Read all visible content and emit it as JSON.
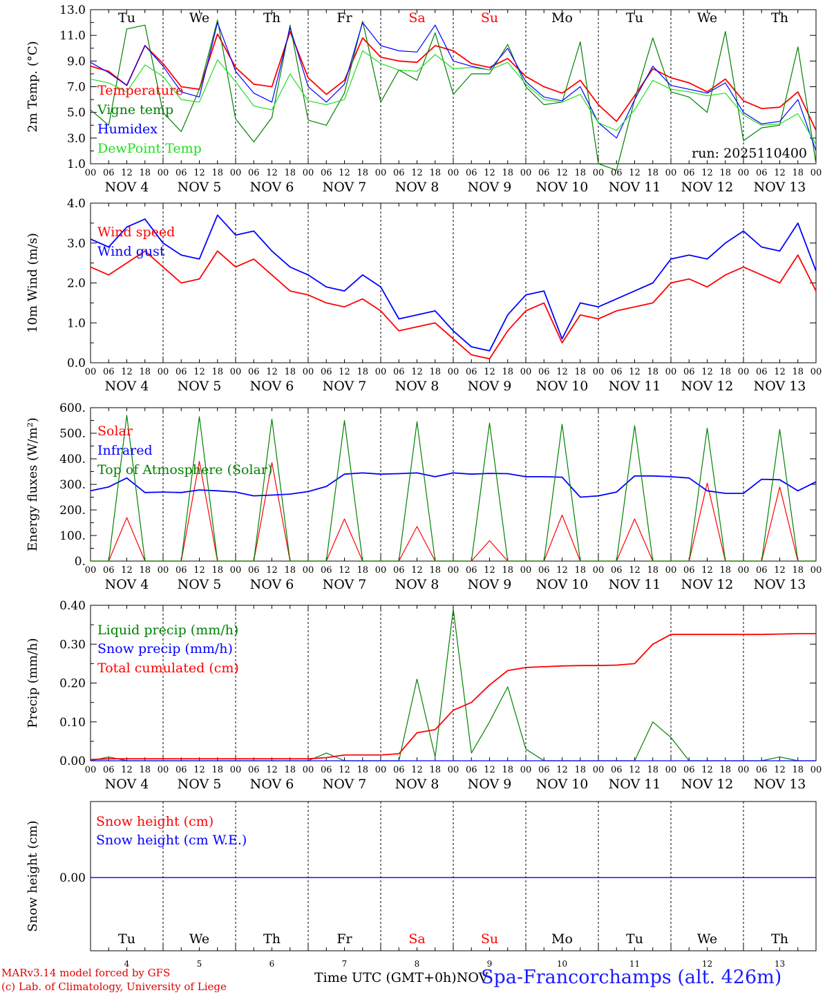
{
  "figure": {
    "days": [
      "Tu",
      "We",
      "Th",
      "Fr",
      "Sa",
      "Su",
      "Mo",
      "Tu",
      "We",
      "Th"
    ],
    "day_numbers": [
      "4",
      "5",
      "6",
      "7",
      "8",
      "9",
      "10",
      "11",
      "12",
      "13"
    ],
    "date_labels": [
      "NOV  4",
      "NOV  5",
      "NOV  6",
      "NOV  7",
      "NOV  8",
      "NOV  9",
      "NOV 10",
      "NOV 11",
      "NOV 12",
      "NOV 13"
    ],
    "hour_ticks": [
      "00",
      "06",
      "12",
      "18"
    ],
    "hour_end": "00",
    "weekend_days": [
      4,
      5
    ],
    "colors": {
      "red": "#ff0000",
      "green": "#008000",
      "blue": "#0000ff",
      "lightgreen": "#22dd22",
      "axis": "#000000"
    },
    "run_label": "run: 2025110400",
    "x_axis_label": "Time UTC (GMT+0h)",
    "x_axis_month": "NOV",
    "station": "Spa-Francorchamps (alt. 426m)",
    "credit_line1": "MARv3.14 model forced by GFS",
    "credit_line2": "(c) Lab. of Climatology, University of Liege"
  },
  "chart_data": [
    {
      "type": "line",
      "title": "2m Temp. (°C)",
      "ylabel": "2m Temp. (°C)",
      "ylim": [
        1.0,
        13.0
      ],
      "yticks": [
        "1.0",
        "3.0",
        "5.0",
        "7.0",
        "9.0",
        "11.0",
        "13.0"
      ],
      "ytick_values": [
        1,
        3,
        5,
        7,
        9,
        11,
        13
      ],
      "x": "hours since NOV 4 00 UTC (0-240, every 6 h)",
      "legend": [
        "Temperature",
        "Vigne temp",
        "Humidex",
        "DewPoint Temp"
      ],
      "series": [
        {
          "name": "Temperature",
          "color": "#ff0000",
          "values": [
            8.6,
            8.2,
            7.1,
            10.2,
            8.8,
            7.0,
            6.8,
            11.1,
            8.5,
            7.2,
            7.0,
            11.3,
            7.7,
            6.4,
            7.5,
            10.8,
            9.3,
            9.0,
            8.9,
            10.2,
            9.8,
            8.8,
            8.5,
            9.2,
            7.8,
            7.0,
            6.5,
            7.5,
            5.6,
            4.3,
            6.3,
            8.4,
            7.7,
            7.3,
            6.6,
            7.6,
            5.9,
            5.3,
            5.4,
            6.6,
            3.6
          ]
        },
        {
          "name": "Vigne temp",
          "color": "#008000",
          "values": [
            5.2,
            4.0,
            11.5,
            11.8,
            5.0,
            3.5,
            6.8,
            12.2,
            4.5,
            2.7,
            4.6,
            11.8,
            4.4,
            4.0,
            6.5,
            12.1,
            5.8,
            8.3,
            7.5,
            11.2,
            6.4,
            8.0,
            8.0,
            10.3,
            7.0,
            5.6,
            5.8,
            10.5,
            1.0,
            0.5,
            6.0,
            10.8,
            6.6,
            6.2,
            5.0,
            11.3,
            2.8,
            3.8,
            4.0,
            10.1,
            1.0
          ]
        },
        {
          "name": "Humidex",
          "color": "#0000ff",
          "values": [
            8.9,
            8.1,
            7.1,
            10.2,
            8.6,
            6.6,
            6.2,
            12.0,
            8.2,
            6.5,
            5.8,
            11.6,
            7.0,
            5.8,
            7.2,
            12.0,
            10.2,
            9.8,
            9.7,
            11.8,
            9.0,
            8.6,
            8.3,
            10.0,
            7.4,
            6.2,
            5.9,
            7.0,
            4.2,
            3.0,
            6.0,
            8.6,
            7.1,
            6.8,
            6.5,
            7.3,
            5.0,
            4.1,
            4.3,
            6.0,
            2.0
          ]
        },
        {
          "name": "DewPoint Temp",
          "color": "#22dd22",
          "values": [
            7.6,
            7.3,
            6.6,
            8.7,
            7.8,
            6.0,
            5.8,
            9.1,
            7.4,
            5.5,
            5.2,
            8.0,
            5.9,
            5.6,
            6.0,
            9.8,
            8.8,
            8.3,
            8.2,
            9.5,
            8.4,
            8.5,
            8.3,
            8.9,
            7.2,
            6.0,
            5.8,
            6.4,
            4.2,
            3.6,
            5.2,
            7.5,
            6.8,
            6.6,
            6.3,
            6.5,
            4.8,
            4.0,
            4.1,
            4.9,
            2.5
          ]
        }
      ]
    },
    {
      "type": "line",
      "title": "10m Wind (m/s)",
      "ylabel": "10m Wind (m/s)",
      "ylim": [
        0.0,
        4.0
      ],
      "yticks": [
        "0.0",
        "1.0",
        "2.0",
        "3.0",
        "4.0"
      ],
      "ytick_values": [
        0,
        1,
        2,
        3,
        4
      ],
      "x": "hours since NOV 4 00 UTC (0-240, every 6 h)",
      "legend": [
        "Wind speed",
        "Wind gust"
      ],
      "series": [
        {
          "name": "Wind speed",
          "color": "#ff0000",
          "values": [
            2.4,
            2.2,
            2.5,
            2.8,
            2.4,
            2.0,
            2.1,
            2.8,
            2.4,
            2.6,
            2.2,
            1.8,
            1.7,
            1.5,
            1.4,
            1.6,
            1.3,
            0.8,
            0.9,
            1.0,
            0.6,
            0.2,
            0.1,
            0.8,
            1.3,
            1.5,
            0.5,
            1.2,
            1.1,
            1.3,
            1.4,
            1.5,
            2.0,
            2.1,
            1.9,
            2.2,
            2.4,
            2.2,
            2.0,
            2.7,
            1.8
          ]
        },
        {
          "name": "Wind gust",
          "color": "#0000ff",
          "values": [
            3.1,
            2.9,
            3.4,
            3.6,
            3.0,
            2.7,
            2.6,
            3.7,
            3.2,
            3.3,
            2.8,
            2.4,
            2.2,
            1.9,
            1.8,
            2.2,
            1.9,
            1.1,
            1.2,
            1.3,
            0.8,
            0.4,
            0.3,
            1.2,
            1.7,
            1.8,
            0.6,
            1.5,
            1.4,
            1.6,
            1.8,
            2.0,
            2.6,
            2.7,
            2.6,
            3.0,
            3.3,
            2.9,
            2.8,
            3.5,
            2.3
          ]
        }
      ]
    },
    {
      "type": "line",
      "title": "Energy fluxes (W/m²)",
      "ylabel": "Energy fluxes (W/m²)",
      "ylim": [
        0,
        600
      ],
      "yticks": [
        "0.",
        "100.",
        "200.",
        "300.",
        "400.",
        "500.",
        "600."
      ],
      "ytick_values": [
        0,
        100,
        200,
        300,
        400,
        500,
        600
      ],
      "x": "hours since NOV 4 00 UTC (0-240, every 6 h)",
      "legend": [
        "Solar",
        "Infrared",
        "Top of Atmosphere (Solar)"
      ],
      "series": [
        {
          "name": "Solar",
          "color": "#ff0000",
          "values": [
            0,
            0,
            170,
            0,
            0,
            0,
            390,
            0,
            0,
            0,
            385,
            0,
            0,
            0,
            165,
            0,
            0,
            0,
            135,
            0,
            0,
            0,
            80,
            0,
            0,
            0,
            180,
            0,
            0,
            0,
            165,
            0,
            0,
            0,
            305,
            0,
            0,
            0,
            290,
            0,
            0
          ]
        },
        {
          "name": "Infrared",
          "color": "#0000ff",
          "values": [
            275,
            290,
            325,
            268,
            270,
            268,
            278,
            275,
            270,
            255,
            258,
            262,
            272,
            292,
            340,
            345,
            340,
            342,
            345,
            330,
            345,
            340,
            343,
            342,
            330,
            330,
            328,
            250,
            255,
            270,
            333,
            333,
            330,
            325,
            275,
            265,
            265,
            320,
            318,
            275,
            310
          ]
        },
        {
          "name": "Top of Atmosphere (Solar)",
          "color": "#008000",
          "values": [
            0,
            0,
            570,
            0,
            0,
            0,
            565,
            0,
            0,
            0,
            555,
            0,
            0,
            0,
            550,
            0,
            0,
            0,
            545,
            0,
            0,
            0,
            540,
            0,
            0,
            0,
            535,
            0,
            0,
            0,
            530,
            0,
            0,
            0,
            520,
            0,
            0,
            0,
            515,
            0,
            0
          ]
        }
      ]
    },
    {
      "type": "line",
      "title": "Precip (mm/h)",
      "ylabel": "Precip (mm/h)",
      "ylim": [
        0.0,
        0.4
      ],
      "yticks": [
        "0.00",
        "0.10",
        "0.20",
        "0.30",
        "0.40"
      ],
      "ytick_values": [
        0,
        0.1,
        0.2,
        0.3,
        0.4
      ],
      "x": "hours since NOV 4 00 UTC (0-240, every 6 h)",
      "legend": [
        "Liquid precip (mm/h)",
        "Snow precip (mm/h)",
        "Total cumulated (cm)"
      ],
      "series": [
        {
          "name": "Liquid precip (mm/h)",
          "color": "#008000",
          "values": [
            0,
            0.01,
            0,
            0,
            0,
            0,
            0,
            0,
            0,
            0,
            0,
            0,
            0,
            0.02,
            0,
            0,
            0,
            0,
            0.21,
            0.01,
            0.39,
            0.02,
            0.1,
            0.19,
            0.03,
            0,
            0,
            0,
            0,
            0,
            0,
            0.1,
            0.06,
            0,
            0,
            0,
            0,
            0,
            0.01,
            0,
            0
          ]
        },
        {
          "name": "Snow precip (mm/h)",
          "color": "#0000ff",
          "values": [
            0,
            0,
            0,
            0,
            0,
            0,
            0,
            0,
            0,
            0,
            0,
            0,
            0,
            0,
            0,
            0,
            0,
            0,
            0,
            0,
            0,
            0,
            0,
            0,
            0,
            0,
            0,
            0,
            0,
            0,
            0,
            0,
            0,
            0,
            0,
            0,
            0,
            0,
            0,
            0,
            0
          ]
        },
        {
          "name": "Total cumulated (cm)",
          "color": "#ff0000",
          "values": [
            0.003,
            0.005,
            0.005,
            0.005,
            0.005,
            0.005,
            0.005,
            0.005,
            0.005,
            0.005,
            0.005,
            0.005,
            0.005,
            0.008,
            0.015,
            0.015,
            0.015,
            0.018,
            0.072,
            0.08,
            0.13,
            0.15,
            0.195,
            0.232,
            0.24,
            0.242,
            0.244,
            0.245,
            0.245,
            0.246,
            0.25,
            0.3,
            0.325,
            0.325,
            0.325,
            0.325,
            0.325,
            0.325,
            0.326,
            0.327,
            0.327
          ]
        }
      ]
    },
    {
      "type": "line",
      "title": "Snow height (cm)",
      "ylabel": "Snow height (cm)",
      "ytick_labels": [
        "0.00"
      ],
      "x": "hours since NOV 4 00 UTC (0-240)",
      "legend": [
        "Snow height (cm)",
        "Snow height (cm W.E.)"
      ],
      "series": [
        {
          "name": "Snow height (cm)",
          "color": "#ff0000",
          "values": [
            0,
            0
          ]
        },
        {
          "name": "Snow height (cm W.E.)",
          "color": "#0000ff",
          "values": [
            0,
            0
          ]
        }
      ]
    }
  ]
}
